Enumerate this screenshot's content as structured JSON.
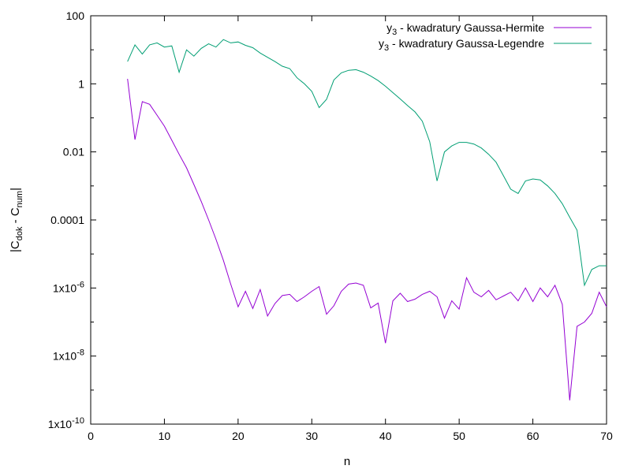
{
  "chart_data": {
    "type": "line",
    "title": "",
    "xlabel": "n",
    "ylabel": {
      "prefix": "|C",
      "sub1": "dok",
      "middle": " - C",
      "sub2": "num",
      "suffix": "|"
    },
    "xlim": [
      0,
      70
    ],
    "ylim": [
      1e-10,
      100
    ],
    "yscale": "log",
    "grid": false,
    "legend_position": "top-right",
    "x_ticks": [
      {
        "value": 0,
        "label": "0"
      },
      {
        "value": 10,
        "label": "10"
      },
      {
        "value": 20,
        "label": "20"
      },
      {
        "value": 30,
        "label": "30"
      },
      {
        "value": 40,
        "label": "40"
      },
      {
        "value": 50,
        "label": "50"
      },
      {
        "value": 60,
        "label": "60"
      },
      {
        "value": 70,
        "label": "70"
      }
    ],
    "y_ticks": [
      {
        "value": 100,
        "base": "100",
        "exp": ""
      },
      {
        "value": 1,
        "base": "1",
        "exp": ""
      },
      {
        "value": 0.01,
        "base": "0.01",
        "exp": ""
      },
      {
        "value": 0.0001,
        "base": "0.0001",
        "exp": ""
      },
      {
        "value": 1e-06,
        "base": "1x10",
        "exp": "-6"
      },
      {
        "value": 1e-08,
        "base": "1x10",
        "exp": "-8"
      },
      {
        "value": 1e-10,
        "base": "1x10",
        "exp": "-10"
      }
    ],
    "series": [
      {
        "name_main": "y",
        "name_sub": "3",
        "name_rest": " - kwadratury Gaussa-Hermite",
        "color": "#9400d3",
        "x": [
          5,
          6,
          7,
          8,
          9,
          10,
          11,
          12,
          13,
          14,
          15,
          16,
          17,
          18,
          19,
          20,
          21,
          22,
          23,
          24,
          25,
          26,
          27,
          28,
          29,
          30,
          31,
          32,
          33,
          34,
          35,
          36,
          37,
          38,
          39,
          40,
          41,
          42,
          43,
          44,
          45,
          46,
          47,
          48,
          49,
          50,
          51,
          52,
          53,
          54,
          55,
          56,
          57,
          58,
          59,
          60,
          61,
          62,
          63,
          64,
          65,
          66,
          67,
          68,
          69,
          70
        ],
        "y": [
          1.4,
          0.023,
          0.3,
          0.25,
          0.12,
          0.057,
          0.022,
          0.0085,
          0.0034,
          0.0011,
          0.00035,
          0.0001,
          2.7e-05,
          6.5e-06,
          1.3e-06,
          2.8e-07,
          8e-07,
          2.5e-07,
          9e-07,
          1.5e-07,
          3.5e-07,
          6e-07,
          6.5e-07,
          4e-07,
          5.5e-07,
          8e-07,
          1.1e-06,
          1.7e-07,
          3e-07,
          8e-07,
          1.3e-06,
          1.4e-06,
          1.2e-06,
          2.6e-07,
          3.6e-07,
          2.4e-08,
          4.2e-07,
          7e-07,
          4e-07,
          4.7e-07,
          6.5e-07,
          8e-07,
          5.5e-07,
          1.3e-07,
          4.2e-07,
          2.4e-07,
          2e-06,
          7.5e-07,
          5.5e-07,
          8.5e-07,
          4.5e-07,
          5.8e-07,
          7.5e-07,
          4.2e-07,
          1e-06,
          4e-07,
          1e-06,
          5.5e-07,
          1.2e-06,
          3.3e-07,
          5e-10,
          7.5e-08,
          1e-07,
          1.8e-07,
          7.5e-07,
          2.8e-07
        ]
      },
      {
        "name_main": "y",
        "name_sub": "3",
        "name_rest": " - kwadratury Gaussa-Legendre",
        "color": "#009e73",
        "x": [
          5,
          6,
          7,
          8,
          9,
          10,
          11,
          12,
          13,
          14,
          15,
          16,
          17,
          18,
          19,
          20,
          21,
          22,
          23,
          24,
          25,
          26,
          27,
          28,
          29,
          30,
          31,
          32,
          33,
          34,
          35,
          36,
          37,
          38,
          39,
          40,
          41,
          42,
          43,
          44,
          45,
          46,
          47,
          48,
          49,
          50,
          51,
          52,
          53,
          54,
          55,
          56,
          57,
          58,
          59,
          60,
          61,
          62,
          63,
          64,
          65,
          66,
          67,
          68,
          69,
          70
        ],
        "y": [
          4.5,
          14,
          7.5,
          14,
          16,
          12,
          13,
          2.2,
          10,
          6.5,
          11,
          15,
          12,
          20,
          16,
          17,
          13.5,
          11.5,
          8,
          6,
          4.5,
          3.3,
          2.8,
          1.5,
          1.0,
          0.6,
          0.2,
          0.35,
          1.3,
          2.1,
          2.5,
          2.6,
          2.2,
          1.7,
          1.25,
          0.85,
          0.55,
          0.36,
          0.23,
          0.15,
          0.08,
          0.02,
          0.0014,
          0.01,
          0.015,
          0.019,
          0.019,
          0.017,
          0.013,
          0.0085,
          0.005,
          0.002,
          0.0008,
          0.0006,
          0.0014,
          0.0016,
          0.0015,
          0.001,
          0.0006,
          0.0003,
          0.00012,
          5e-05,
          1.2e-06,
          3.5e-06,
          4.5e-06,
          4.5e-06
        ]
      }
    ]
  }
}
